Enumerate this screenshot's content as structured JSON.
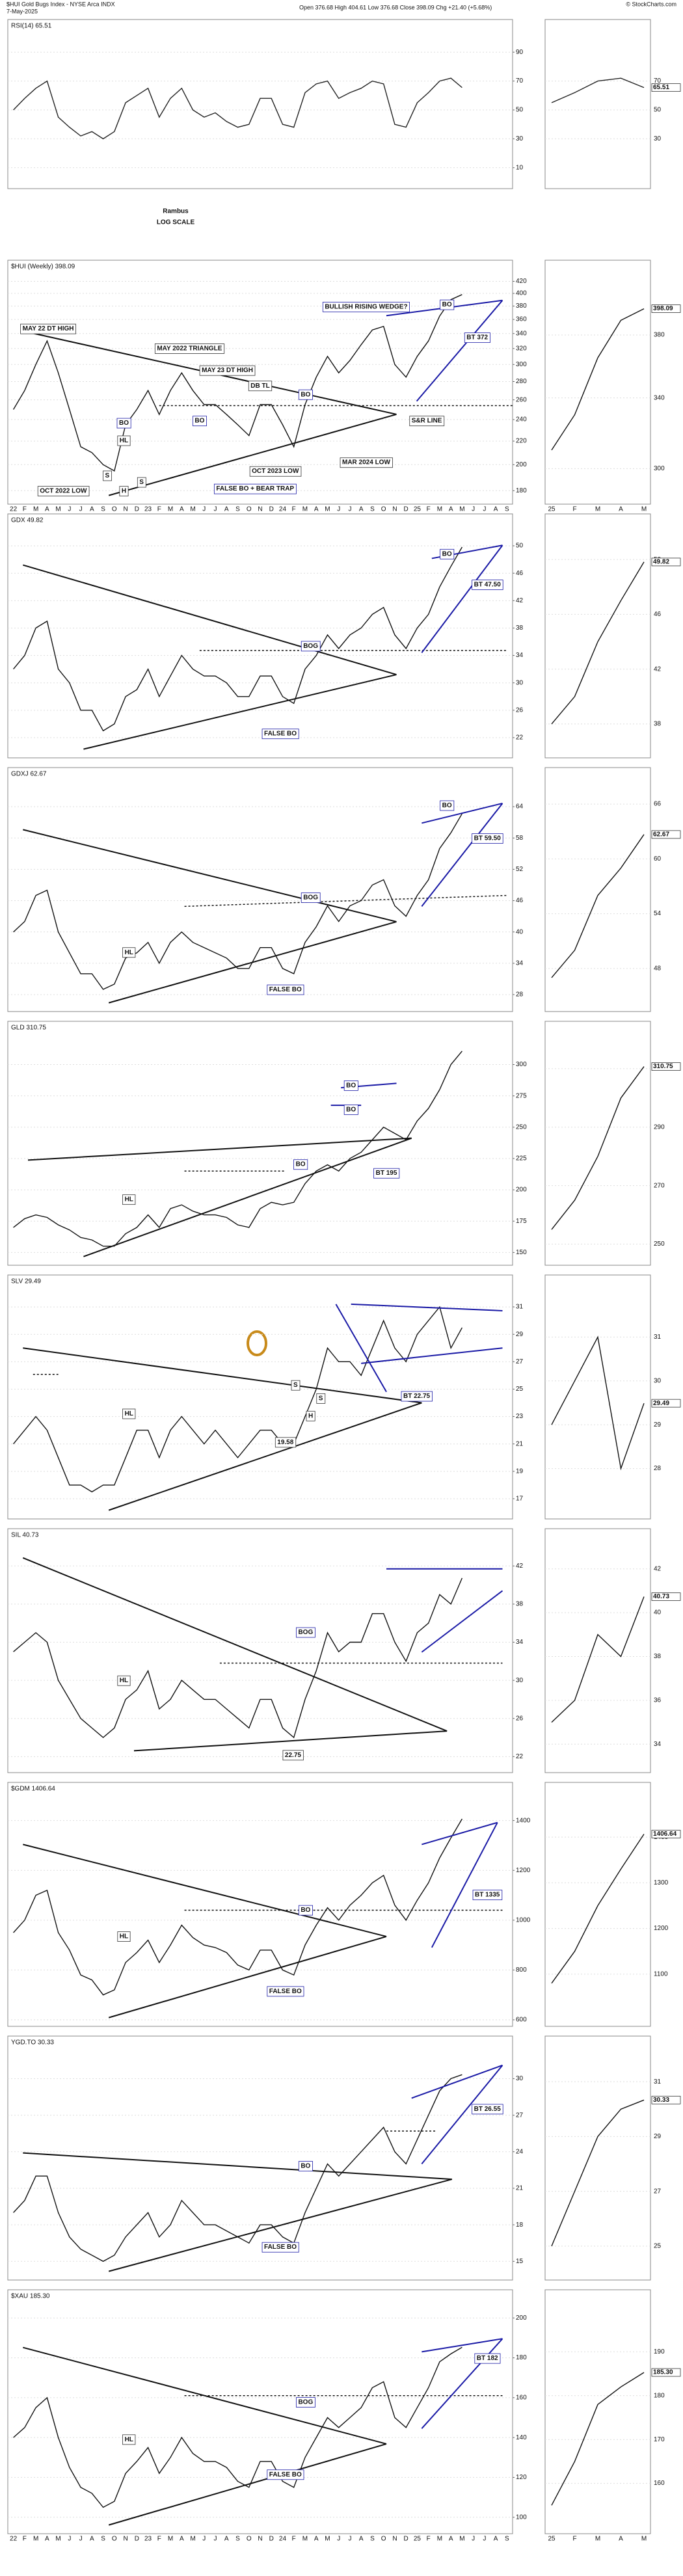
{
  "header": {
    "symbol": "$HUI Gold Bugs Index - NYSE Arca INDX",
    "date": "7-May-2025",
    "quote": "Open 376.68  High 404.61  Low 376.68  Close 398.09  Chg +21.40 (+5.68%)",
    "source": "© StockCharts.com",
    "note_lines": [
      "Rambus",
      "LOG SCALE"
    ]
  },
  "chart_data": [
    {
      "type": "line",
      "title": "RSI(14) 65.51",
      "ylim": [
        0,
        100
      ],
      "yticks": [
        10,
        30,
        50,
        70,
        90
      ],
      "color": "#222222",
      "values": [
        50,
        58,
        65,
        70,
        45,
        38,
        32,
        35,
        30,
        35,
        55,
        60,
        65,
        45,
        58,
        65,
        50,
        45,
        48,
        42,
        38,
        40,
        58,
        58,
        40,
        38,
        62,
        68,
        70,
        58,
        62,
        65,
        70,
        68,
        40,
        38,
        55,
        62,
        70,
        72,
        65.51,
        null,
        null,
        null,
        null
      ],
      "detail_ylim": [
        0,
        100
      ],
      "detail_yticks": [
        30,
        50,
        70
      ],
      "last_value_label": "65.51"
    },
    {
      "type": "line",
      "title": "$HUI (Weekly) 398.09",
      "log": true,
      "ylim": [
        175,
        425
      ],
      "yticks": [
        180,
        200,
        220,
        240,
        260,
        280,
        300,
        320,
        340,
        360,
        380,
        400,
        420
      ],
      "color": "#111111",
      "categories": [
        "22",
        "F",
        "M",
        "A",
        "M",
        "J",
        "J",
        "A",
        "S",
        "O",
        "N",
        "D",
        "23",
        "F",
        "M",
        "A",
        "M",
        "J",
        "J",
        "A",
        "S",
        "O",
        "N",
        "D",
        "24",
        "F",
        "M",
        "A",
        "M",
        "J",
        "J",
        "A",
        "S",
        "O",
        "N",
        "D",
        "25",
        "F",
        "M",
        "A",
        "M",
        "J",
        "J",
        "A",
        "S"
      ],
      "values": [
        250,
        270,
        300,
        330,
        290,
        250,
        215,
        210,
        200,
        195,
        235,
        250,
        270,
        245,
        270,
        290,
        270,
        255,
        255,
        245,
        235,
        225,
        255,
        255,
        235,
        215,
        255,
        285,
        310,
        290,
        305,
        325,
        345,
        350,
        300,
        285,
        310,
        330,
        365,
        390,
        398.09,
        null,
        null,
        null,
        null
      ],
      "annotations": [
        "MAY 22 DT HIGH",
        "MAY 2022 TRIANGLE",
        "MAY 23 DT HIGH",
        "DB TL",
        "BO",
        "BO",
        "BO",
        "HL",
        "S",
        "H",
        "S",
        "OCT 2022 LOW",
        "OCT 2023 LOW",
        "MAR 2024 LOW",
        "FALSE BO + BEAR TRAP",
        "S&R LINE",
        "BULLISH RISING WEDGE?",
        "BO",
        "BT 372"
      ],
      "detail_categories": [
        "25",
        "F",
        "M",
        "A",
        "M"
      ],
      "detail_ylim": [
        285,
        420
      ],
      "detail_yticks": [
        300,
        340,
        380
      ],
      "last_value_label": "398.09"
    },
    {
      "type": "line",
      "title": "GDX 49.82",
      "ylim": [
        20,
        52
      ],
      "yticks": [
        22,
        26,
        30,
        34,
        38,
        42,
        46,
        50
      ],
      "color": "#111111",
      "values": [
        32,
        34,
        38,
        39,
        32,
        30,
        26,
        26,
        23,
        24,
        28,
        29,
        32,
        28,
        31,
        34,
        32,
        31,
        31,
        30,
        28,
        28,
        31,
        31,
        28,
        27,
        32,
        34,
        37,
        35,
        37,
        38,
        40,
        41,
        37,
        35,
        38,
        40,
        44,
        47,
        49.82,
        null,
        null,
        null,
        null
      ],
      "annotations": [
        "BOG",
        "FALSE BO",
        "BO",
        "BT 47.50"
      ],
      "detail_ylim": [
        36,
        52
      ],
      "detail_yticks": [
        38,
        42,
        46,
        50
      ],
      "last_value_label": "49.82"
    },
    {
      "type": "line",
      "title": "GDXJ 62.67",
      "ylim": [
        26,
        68
      ],
      "yticks": [
        28,
        34,
        40,
        46,
        52,
        58,
        64
      ],
      "color": "#111111",
      "values": [
        40,
        42,
        47,
        48,
        40,
        36,
        32,
        32,
        29,
        30,
        35,
        36,
        38,
        34,
        38,
        40,
        38,
        37,
        36,
        35,
        33,
        33,
        37,
        37,
        33,
        32,
        38,
        41,
        45,
        42,
        45,
        46,
        49,
        50,
        45,
        43,
        47,
        50,
        56,
        59,
        62.67,
        null,
        null,
        null,
        null
      ],
      "annotations": [
        "HL",
        "BOG",
        "FALSE BO",
        "BO",
        "BT 59.50"
      ],
      "detail_ylim": [
        44,
        68
      ],
      "detail_yticks": [
        48,
        54,
        60,
        66
      ],
      "last_value_label": "62.67"
    },
    {
      "type": "line",
      "title": "GLD 310.75",
      "ylim": [
        145,
        320
      ],
      "yticks": [
        150,
        175,
        200,
        225,
        250,
        275,
        300
      ],
      "color": "#111111",
      "values": [
        170,
        177,
        180,
        178,
        172,
        168,
        162,
        160,
        155,
        155,
        165,
        170,
        180,
        170,
        185,
        188,
        183,
        180,
        180,
        178,
        172,
        170,
        185,
        190,
        188,
        190,
        205,
        215,
        220,
        215,
        225,
        230,
        240,
        250,
        245,
        240,
        255,
        265,
        280,
        300,
        310.75,
        null,
        null,
        null,
        null
      ],
      "annotations": [
        "HL",
        "BO",
        "BO",
        "BO",
        "BT 195"
      ],
      "detail_ylim": [
        245,
        320
      ],
      "detail_yticks": [
        250,
        270,
        290,
        310
      ],
      "last_value_label": "310.75"
    },
    {
      "type": "line",
      "title": "SLV 29.49",
      "ylim": [
        16,
        32
      ],
      "yticks": [
        17,
        19,
        21,
        23,
        25,
        27,
        29,
        31
      ],
      "color": "#111111",
      "values": [
        21,
        22,
        23,
        22,
        20,
        18,
        18,
        17.5,
        18,
        18,
        20,
        22,
        22,
        20,
        22,
        23,
        22,
        21,
        22,
        21,
        20,
        21,
        22,
        22,
        21,
        21,
        23,
        25,
        28,
        27,
        27,
        26,
        28,
        30,
        28,
        27,
        29,
        30,
        31,
        28,
        29.49,
        null,
        null,
        null,
        null
      ],
      "annotations": [
        "HL",
        "S",
        "H",
        "S",
        "19.58",
        "BT 22.75"
      ],
      "detail_ylim": [
        27,
        32
      ],
      "detail_yticks": [
        28,
        29,
        30,
        31
      ],
      "last_value_label": "29.49"
    },
    {
      "type": "line",
      "title": "SIL 40.73",
      "ylim": [
        21,
        44
      ],
      "yticks": [
        22,
        26,
        30,
        34,
        38,
        42
      ],
      "color": "#111111",
      "values": [
        33,
        34,
        35,
        34,
        30,
        28,
        26,
        25,
        24,
        25,
        28,
        29,
        31,
        27,
        28,
        30,
        29,
        28,
        28,
        27,
        26,
        25,
        28,
        28,
        25,
        24,
        28,
        31,
        35,
        33,
        34,
        34,
        37,
        37,
        34,
        32,
        35,
        36,
        39,
        38,
        40.73,
        null,
        null,
        null,
        null
      ],
      "annotations": [
        "HL",
        "BOG",
        "22.75"
      ],
      "detail_ylim": [
        33,
        43
      ],
      "detail_yticks": [
        34,
        36,
        38,
        40,
        42
      ],
      "last_value_label": "40.73"
    },
    {
      "type": "line",
      "title": "$GDM 1406.64",
      "ylim": [
        600,
        1480
      ],
      "yticks": [
        600,
        800,
        1000,
        1200,
        1400
      ],
      "color": "#111111",
      "values": [
        950,
        1000,
        1100,
        1120,
        950,
        880,
        780,
        760,
        700,
        720,
        830,
        870,
        920,
        830,
        900,
        980,
        930,
        900,
        890,
        870,
        820,
        800,
        880,
        880,
        800,
        780,
        900,
        980,
        1050,
        1000,
        1060,
        1100,
        1150,
        1180,
        1060,
        1000,
        1080,
        1150,
        1250,
        1330,
        1406.64,
        null,
        null,
        null,
        null
      ],
      "annotations": [
        "HL",
        "BO",
        "FALSE BO",
        "BT 1335"
      ],
      "detail_ylim": [
        1000,
        1480
      ],
      "detail_yticks": [
        1100,
        1200,
        1300,
        1400
      ],
      "last_value_label": "1406.64"
    },
    {
      "type": "line",
      "title": "YGD.TO 30.33",
      "ylim": [
        14,
        32
      ],
      "yticks": [
        15,
        18,
        21,
        24,
        27,
        30
      ],
      "color": "#111111",
      "values": [
        19,
        20,
        22,
        22,
        19,
        17,
        16,
        15.5,
        15,
        15.5,
        17,
        18,
        19,
        17,
        18,
        20,
        19,
        18,
        18,
        17.5,
        17,
        16.5,
        18,
        18,
        17,
        16.5,
        19,
        21,
        23,
        22,
        23,
        24,
        25,
        26,
        24,
        23,
        25,
        27,
        29,
        30,
        30.33,
        null,
        null,
        null,
        null
      ],
      "annotations": [
        "BO",
        "FALSE BO",
        "BT 26.55"
      ],
      "detail_ylim": [
        24,
        32
      ],
      "detail_yticks": [
        25,
        27,
        29,
        31
      ],
      "last_value_label": "30.33"
    },
    {
      "type": "line",
      "title": "$XAU 185.30",
      "ylim": [
        95,
        205
      ],
      "yticks": [
        100,
        120,
        140,
        160,
        180,
        200
      ],
      "color": "#111111",
      "categories": [
        "22",
        "F",
        "M",
        "A",
        "M",
        "J",
        "J",
        "A",
        "S",
        "O",
        "N",
        "D",
        "23",
        "F",
        "M",
        "A",
        "M",
        "J",
        "J",
        "A",
        "S",
        "O",
        "N",
        "D",
        "24",
        "F",
        "M",
        "A",
        "M",
        "J",
        "J",
        "A",
        "S",
        "O",
        "N",
        "D",
        "25",
        "F",
        "M",
        "A",
        "M",
        "J",
        "J",
        "A",
        "S"
      ],
      "values": [
        140,
        145,
        155,
        160,
        140,
        125,
        115,
        112,
        105,
        108,
        122,
        128,
        135,
        122,
        130,
        140,
        132,
        128,
        128,
        125,
        118,
        115,
        128,
        128,
        118,
        115,
        130,
        140,
        150,
        145,
        150,
        155,
        165,
        168,
        150,
        145,
        155,
        165,
        178,
        182,
        185.3,
        null,
        null,
        null,
        null
      ],
      "annotations": [
        "HL",
        "BOG",
        "FALSE BO",
        "BT 182"
      ],
      "detail_categories": [
        "25",
        "F",
        "M",
        "A",
        "M"
      ],
      "detail_ylim": [
        150,
        200
      ],
      "detail_yticks": [
        160,
        170,
        180,
        190
      ],
      "last_value_label": "185.30"
    }
  ]
}
